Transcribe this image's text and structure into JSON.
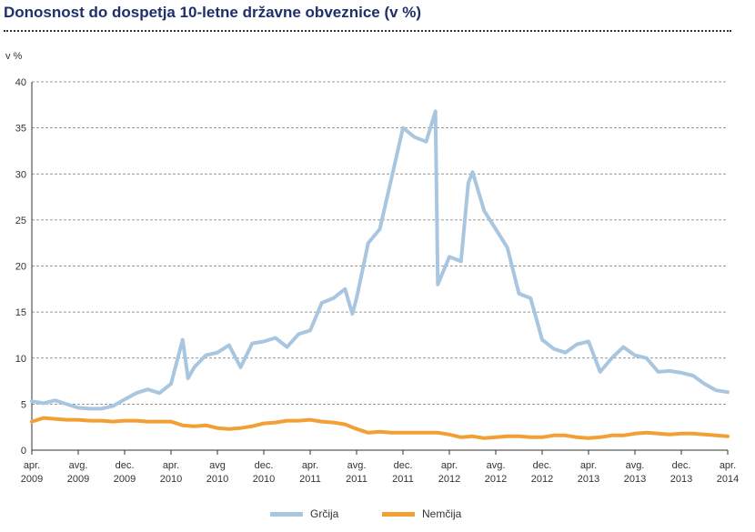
{
  "title": "Donosnost do dospetja 10-letne državne obveznice (v %)",
  "colors": {
    "greece": "#a9c6e0",
    "germany": "#f2a033",
    "grid": "#777777",
    "axis": "#333333"
  },
  "chart_data": {
    "type": "line",
    "title": "Donosnost do dospetja 10-letne državne obveznice (v %)",
    "ylabel": "v %",
    "ylim": [
      0,
      40
    ],
    "yticks": [
      "0",
      "5",
      "10",
      "15",
      "20",
      "25",
      "30",
      "35",
      "40"
    ],
    "grid": true,
    "legend_position": "bottom",
    "xticks": [
      [
        "apr.",
        "2009"
      ],
      [
        "avg.",
        "2009"
      ],
      [
        "dec.",
        "2009"
      ],
      [
        "apr.",
        "2010"
      ],
      [
        "avg",
        "2010"
      ],
      [
        "dec.",
        "2010"
      ],
      [
        "apr.",
        "2011"
      ],
      [
        "avg.",
        "2011"
      ],
      [
        "dec.",
        "2011"
      ],
      [
        "apr.",
        "2012"
      ],
      [
        "avg.",
        "2012"
      ],
      [
        "dec.",
        "2012"
      ],
      [
        "apr.",
        "2013"
      ],
      [
        "avg.",
        "2013"
      ],
      [
        "dec.",
        "2013"
      ],
      [
        "apr.",
        "2014"
      ]
    ],
    "x_range": [
      "2009-04",
      "2014-04"
    ],
    "series": [
      {
        "name": "Grčija",
        "color": "#a9c6e0",
        "points": [
          [
            "2009-04",
            5.3
          ],
          [
            "2009-05",
            5.1
          ],
          [
            "2009-06",
            5.4
          ],
          [
            "2009-07",
            5.0
          ],
          [
            "2009-08",
            4.6
          ],
          [
            "2009-09",
            4.5
          ],
          [
            "2009-10",
            4.5
          ],
          [
            "2009-11",
            4.8
          ],
          [
            "2009-12",
            5.5
          ],
          [
            "2010-01",
            6.2
          ],
          [
            "2010-02",
            6.6
          ],
          [
            "2010-03",
            6.2
          ],
          [
            "2010-04",
            7.2
          ],
          [
            "2010-05",
            12.0
          ],
          [
            "2010-05-15",
            7.8
          ],
          [
            "2010-06",
            9.0
          ],
          [
            "2010-07",
            10.3
          ],
          [
            "2010-08",
            10.6
          ],
          [
            "2010-09",
            11.4
          ],
          [
            "2010-10",
            9.0
          ],
          [
            "2010-11",
            11.6
          ],
          [
            "2010-12",
            11.8
          ],
          [
            "2011-01",
            12.2
          ],
          [
            "2011-02",
            11.2
          ],
          [
            "2011-03",
            12.6
          ],
          [
            "2011-04",
            13.0
          ],
          [
            "2011-05",
            16.0
          ],
          [
            "2011-06",
            16.5
          ],
          [
            "2011-07",
            17.5
          ],
          [
            "2011-07-20",
            14.8
          ],
          [
            "2011-08",
            16.5
          ],
          [
            "2011-09",
            22.5
          ],
          [
            "2011-10",
            24.0
          ],
          [
            "2011-11",
            29.5
          ],
          [
            "2011-12",
            35.0
          ],
          [
            "2012-01",
            34.0
          ],
          [
            "2012-02",
            33.5
          ],
          [
            "2012-02-25",
            36.8
          ],
          [
            "2012-03",
            18.0
          ],
          [
            "2012-04",
            21.0
          ],
          [
            "2012-05",
            20.5
          ],
          [
            "2012-05-20",
            29.0
          ],
          [
            "2012-06",
            30.2
          ],
          [
            "2012-07",
            26.0
          ],
          [
            "2012-08",
            24.0
          ],
          [
            "2012-09",
            22.0
          ],
          [
            "2012-10",
            17.0
          ],
          [
            "2012-11",
            16.5
          ],
          [
            "2012-12",
            12.0
          ],
          [
            "2013-01",
            11.0
          ],
          [
            "2013-02",
            10.6
          ],
          [
            "2013-03",
            11.5
          ],
          [
            "2013-04",
            11.8
          ],
          [
            "2013-05",
            8.5
          ],
          [
            "2013-06",
            10.0
          ],
          [
            "2013-07",
            11.2
          ],
          [
            "2013-08",
            10.3
          ],
          [
            "2013-09",
            10.0
          ],
          [
            "2013-10",
            8.5
          ],
          [
            "2013-11",
            8.6
          ],
          [
            "2013-12",
            8.4
          ],
          [
            "2014-01",
            8.1
          ],
          [
            "2014-02",
            7.2
          ],
          [
            "2014-03",
            6.5
          ],
          [
            "2014-04",
            6.3
          ]
        ]
      },
      {
        "name": "Nemčija",
        "color": "#f2a033",
        "points": [
          [
            "2009-04",
            3.1
          ],
          [
            "2009-05",
            3.5
          ],
          [
            "2009-06",
            3.4
          ],
          [
            "2009-07",
            3.3
          ],
          [
            "2009-08",
            3.3
          ],
          [
            "2009-09",
            3.2
          ],
          [
            "2009-10",
            3.2
          ],
          [
            "2009-11",
            3.1
          ],
          [
            "2009-12",
            3.2
          ],
          [
            "2010-01",
            3.2
          ],
          [
            "2010-02",
            3.1
          ],
          [
            "2010-03",
            3.1
          ],
          [
            "2010-04",
            3.1
          ],
          [
            "2010-05",
            2.7
          ],
          [
            "2010-06",
            2.6
          ],
          [
            "2010-07",
            2.7
          ],
          [
            "2010-08",
            2.4
          ],
          [
            "2010-09",
            2.3
          ],
          [
            "2010-10",
            2.4
          ],
          [
            "2010-11",
            2.6
          ],
          [
            "2010-12",
            2.9
          ],
          [
            "2011-01",
            3.0
          ],
          [
            "2011-02",
            3.2
          ],
          [
            "2011-03",
            3.2
          ],
          [
            "2011-04",
            3.3
          ],
          [
            "2011-05",
            3.1
          ],
          [
            "2011-06",
            3.0
          ],
          [
            "2011-07",
            2.8
          ],
          [
            "2011-08",
            2.3
          ],
          [
            "2011-09",
            1.9
          ],
          [
            "2011-10",
            2.0
          ],
          [
            "2011-11",
            1.9
          ],
          [
            "2011-12",
            1.9
          ],
          [
            "2012-01",
            1.9
          ],
          [
            "2012-02",
            1.9
          ],
          [
            "2012-03",
            1.9
          ],
          [
            "2012-04",
            1.7
          ],
          [
            "2012-05",
            1.4
          ],
          [
            "2012-06",
            1.5
          ],
          [
            "2012-07",
            1.3
          ],
          [
            "2012-08",
            1.4
          ],
          [
            "2012-09",
            1.5
          ],
          [
            "2012-10",
            1.5
          ],
          [
            "2012-11",
            1.4
          ],
          [
            "2012-12",
            1.4
          ],
          [
            "2013-01",
            1.6
          ],
          [
            "2013-02",
            1.6
          ],
          [
            "2013-03",
            1.4
          ],
          [
            "2013-04",
            1.3
          ],
          [
            "2013-05",
            1.4
          ],
          [
            "2013-06",
            1.6
          ],
          [
            "2013-07",
            1.6
          ],
          [
            "2013-08",
            1.8
          ],
          [
            "2013-09",
            1.9
          ],
          [
            "2013-10",
            1.8
          ],
          [
            "2013-11",
            1.7
          ],
          [
            "2013-12",
            1.8
          ],
          [
            "2014-01",
            1.8
          ],
          [
            "2014-02",
            1.7
          ],
          [
            "2014-03",
            1.6
          ],
          [
            "2014-04",
            1.5
          ]
        ]
      }
    ]
  }
}
